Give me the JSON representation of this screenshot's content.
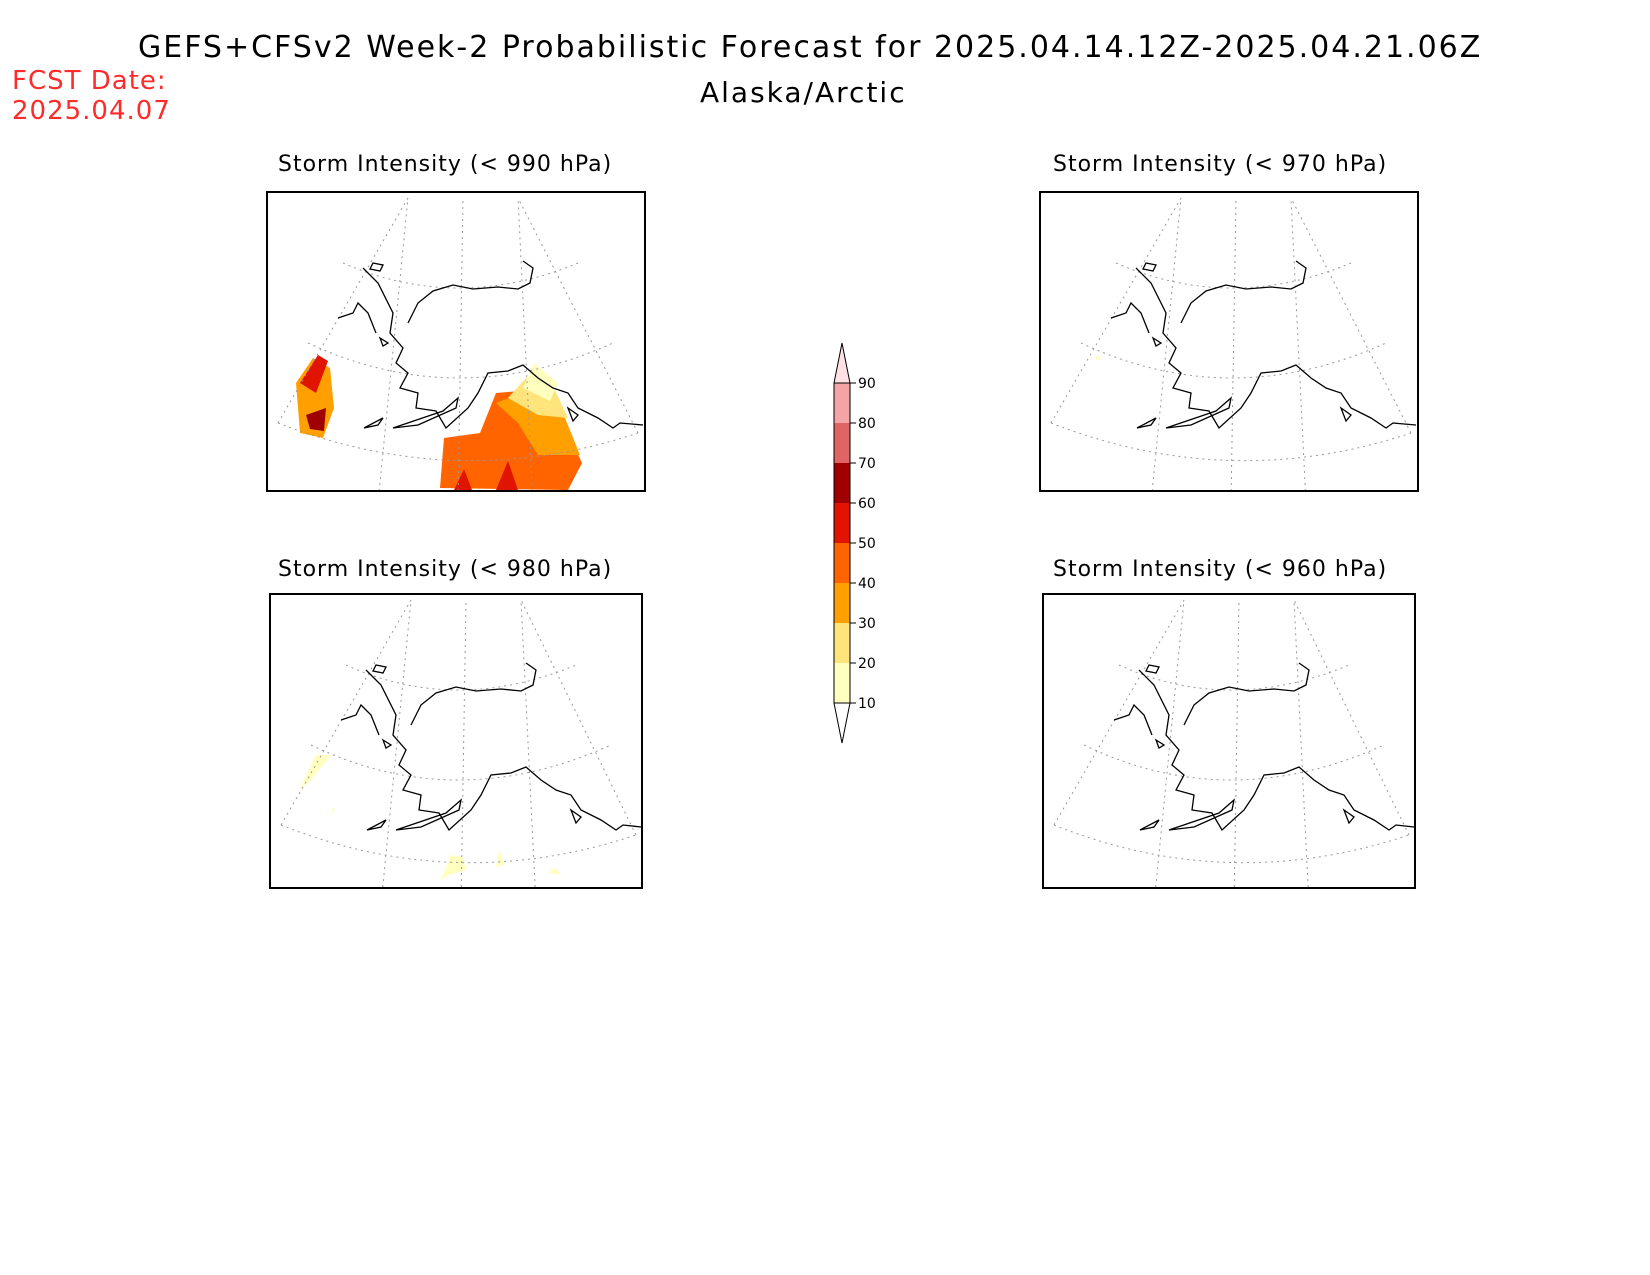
{
  "header": {
    "title": "GEFS+CFSv2 Week-2 Probabilistic Forecast for 2025.04.14.12Z-2025.04.21.06Z",
    "region": "Alaska/Arctic",
    "fcst_label": "FCST Date:",
    "fcst_date": "2025.04.07"
  },
  "panels": [
    {
      "id": "p990",
      "title": "Storm Intensity (< 990 hPa)",
      "max_probability": 60
    },
    {
      "id": "p970",
      "title": "Storm Intensity (< 970 hPa)",
      "max_probability": 10
    },
    {
      "id": "p980",
      "title": "Storm Intensity (< 980 hPa)",
      "max_probability": 20
    },
    {
      "id": "p960",
      "title": "Storm Intensity (< 960 hPa)",
      "max_probability": 10
    }
  ],
  "colorbar": {
    "levels": [
      "10",
      "20",
      "30",
      "40",
      "50",
      "60",
      "70",
      "80",
      "90"
    ],
    "colors": [
      "#ffffc0",
      "#ffe47c",
      "#ffa000",
      "#ff6400",
      "#e01400",
      "#a00000",
      "#e06464",
      "#f4a4a4",
      "#ffe0e4"
    ]
  }
}
